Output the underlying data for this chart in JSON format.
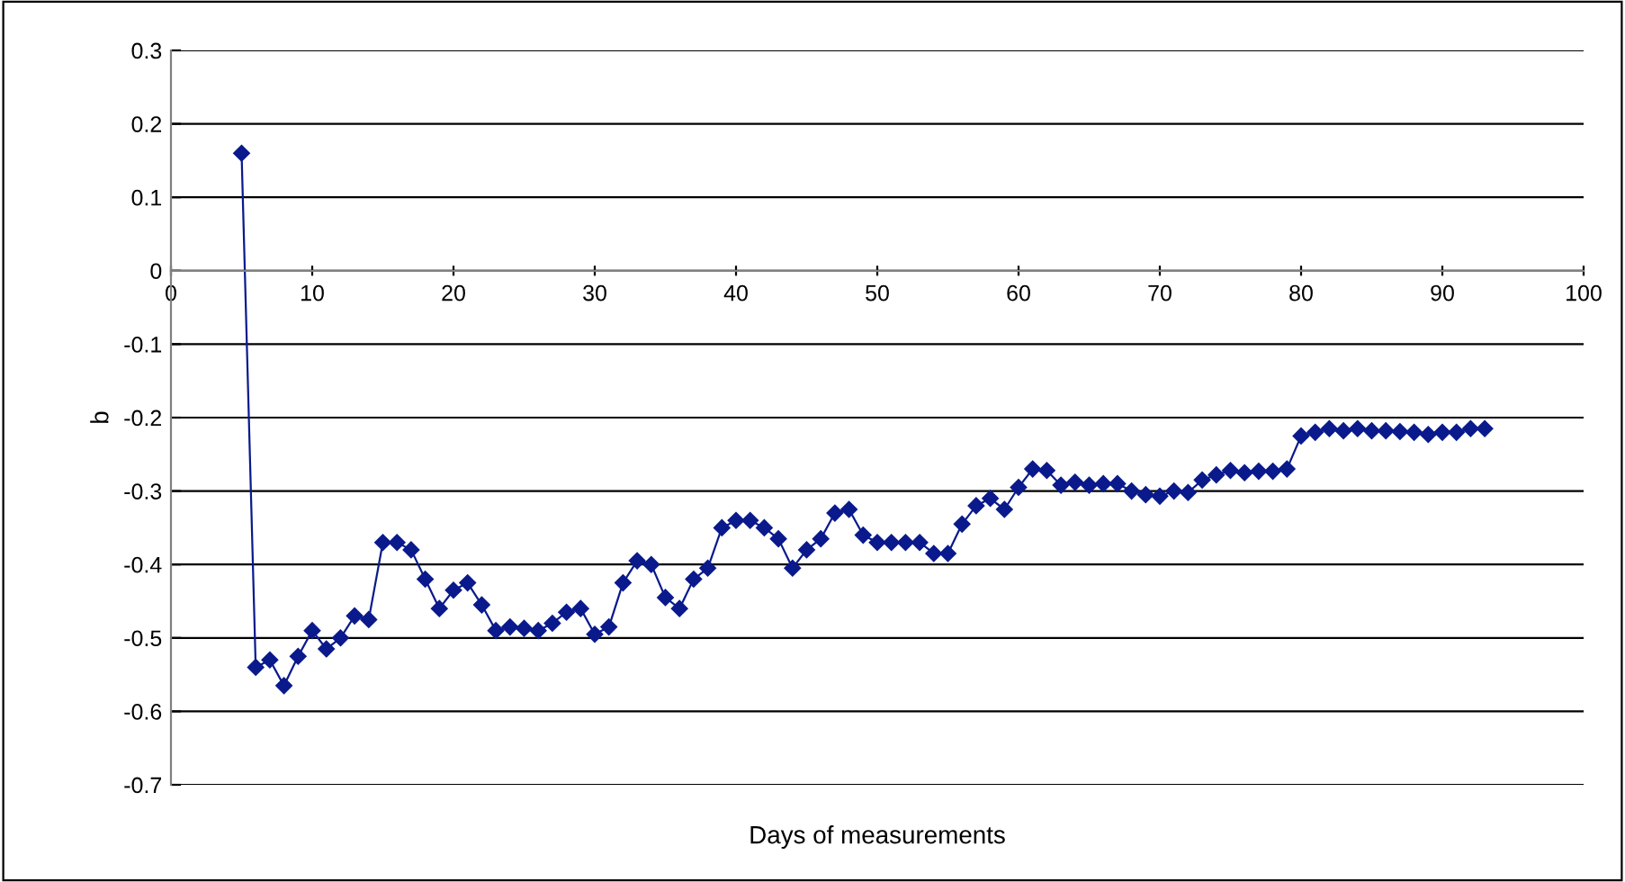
{
  "chart_data": {
    "type": "line",
    "xlabel": "Days of measurements",
    "ylabel": "b",
    "x": [
      5,
      6,
      7,
      8,
      9,
      10,
      11,
      12,
      13,
      14,
      15,
      16,
      17,
      18,
      19,
      20,
      21,
      22,
      23,
      24,
      25,
      26,
      27,
      28,
      29,
      30,
      31,
      32,
      33,
      34,
      35,
      36,
      37,
      38,
      39,
      40,
      41,
      42,
      43,
      44,
      45,
      46,
      47,
      48,
      49,
      50,
      51,
      52,
      53,
      54,
      55,
      56,
      57,
      58,
      59,
      60,
      61,
      62,
      63,
      64,
      65,
      66,
      67,
      68,
      69,
      70,
      71,
      72,
      73,
      74,
      75,
      76,
      77,
      78,
      79,
      80,
      81,
      82,
      83,
      84,
      85,
      86,
      87,
      88,
      89,
      90,
      91,
      92,
      93
    ],
    "series": [
      {
        "color": "#0a1a8c",
        "values": [
          0.16,
          -0.54,
          -0.53,
          -0.565,
          -0.525,
          -0.49,
          -0.515,
          -0.5,
          -0.47,
          -0.475,
          -0.37,
          -0.37,
          -0.38,
          -0.42,
          -0.46,
          -0.435,
          -0.425,
          -0.455,
          -0.49,
          -0.485,
          -0.487,
          -0.49,
          -0.48,
          -0.465,
          -0.46,
          -0.495,
          -0.485,
          -0.425,
          -0.395,
          -0.4,
          -0.445,
          -0.46,
          -0.42,
          -0.405,
          -0.35,
          -0.34,
          -0.34,
          -0.35,
          -0.365,
          -0.405,
          -0.38,
          -0.365,
          -0.33,
          -0.325,
          -0.36,
          -0.37,
          -0.37,
          -0.37,
          -0.37,
          -0.385,
          -0.385,
          -0.345,
          -0.32,
          -0.31,
          -0.325,
          -0.295,
          -0.27,
          -0.272,
          -0.292,
          -0.288,
          -0.292,
          -0.29,
          -0.29,
          -0.3,
          -0.305,
          -0.307,
          -0.3,
          -0.302,
          -0.285,
          -0.278,
          -0.272,
          -0.275,
          -0.273,
          -0.273,
          -0.27,
          -0.225,
          -0.22,
          -0.215,
          -0.218,
          -0.215,
          -0.218,
          -0.218,
          -0.219,
          -0.22,
          -0.223,
          -0.22,
          -0.22,
          -0.215,
          -0.215
        ]
      }
    ],
    "xlim": [
      0,
      100
    ],
    "xticks": [
      0,
      10,
      20,
      30,
      40,
      50,
      60,
      70,
      80,
      90,
      100
    ],
    "ylim": [
      -0.7,
      0.3
    ],
    "yticks": [
      -0.7,
      -0.6,
      -0.5,
      -0.4,
      -0.3,
      -0.2,
      -0.1,
      0,
      0.1,
      0.2,
      0.3
    ],
    "grid": "y",
    "marker": "diamond",
    "line_style": "solid"
  }
}
